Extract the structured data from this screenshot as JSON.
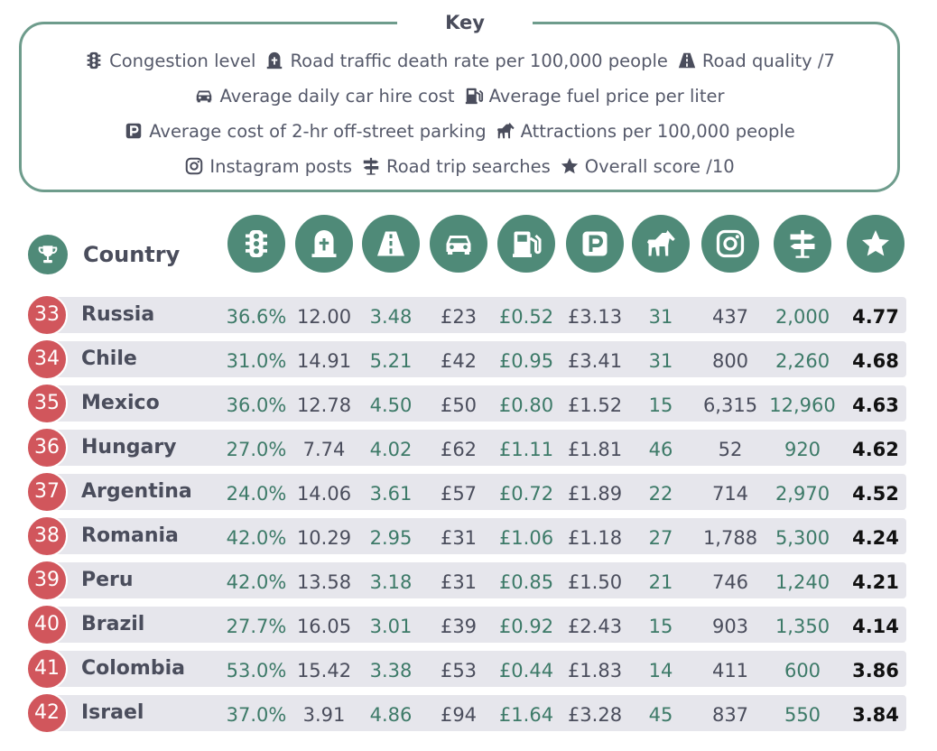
{
  "key": {
    "title": "Key",
    "rows": [
      [
        {
          "icon": "traffic-light-icon",
          "label": "Congestion level"
        },
        {
          "icon": "gravestone-icon",
          "label": "Road traffic death rate per 100,000 people"
        },
        {
          "icon": "road-icon",
          "label": "Road quality /7"
        }
      ],
      [
        {
          "icon": "car-icon",
          "label": "Average daily car hire cost"
        },
        {
          "icon": "fuel-pump-icon",
          "label": "Average fuel price per liter"
        }
      ],
      [
        {
          "icon": "parking-icon",
          "label": "Average cost of 2-hr off-street parking"
        },
        {
          "icon": "horse-icon",
          "label": "Attractions per 100,000 people"
        }
      ],
      [
        {
          "icon": "instagram-icon",
          "label": "Instagram posts"
        },
        {
          "icon": "signpost-icon",
          "label": "Road trip searches"
        },
        {
          "icon": "star-icon",
          "label": "Overall score /10"
        }
      ]
    ]
  },
  "table": {
    "country_header": "Country",
    "rank_icon": "trophy-icon",
    "column_icons": [
      "traffic-light-icon",
      "gravestone-icon",
      "road-icon",
      "car-icon",
      "fuel-pump-icon",
      "parking-icon",
      "horse-icon",
      "instagram-icon",
      "signpost-icon",
      "star-icon"
    ],
    "colors": {
      "accent": "#4f8a78",
      "rank_badge": "#d1565c",
      "row_bg": "#e6e6ec",
      "value_green": "#3d7a68"
    }
  },
  "chart_data": {
    "type": "table",
    "columns": [
      "Rank",
      "Country",
      "Congestion level",
      "Road traffic death rate per 100,000 people",
      "Road quality /7",
      "Average daily car hire cost",
      "Average fuel price per liter",
      "Average cost of 2-hr off-street parking",
      "Attractions per 100,000 people",
      "Instagram posts",
      "Road trip searches",
      "Overall score /10"
    ],
    "rows": [
      {
        "rank": "33",
        "country": "Russia",
        "values": [
          "36.6%",
          "12.00",
          "3.48",
          "£23",
          "£0.52",
          "£3.13",
          "31",
          "437",
          "2,000",
          "4.77"
        ]
      },
      {
        "rank": "34",
        "country": "Chile",
        "values": [
          "31.0%",
          "14.91",
          "5.21",
          "£42",
          "£0.95",
          "£3.41",
          "31",
          "800",
          "2,260",
          "4.68"
        ]
      },
      {
        "rank": "35",
        "country": "Mexico",
        "values": [
          "36.0%",
          "12.78",
          "4.50",
          "£50",
          "£0.80",
          "£1.52",
          "15",
          "6,315",
          "12,960",
          "4.63"
        ]
      },
      {
        "rank": "36",
        "country": "Hungary",
        "values": [
          "27.0%",
          "7.74",
          "4.02",
          "£62",
          "£1.11",
          "£1.81",
          "46",
          "52",
          "920",
          "4.62"
        ]
      },
      {
        "rank": "37",
        "country": "Argentina",
        "values": [
          "24.0%",
          "14.06",
          "3.61",
          "£57",
          "£0.72",
          "£1.89",
          "22",
          "714",
          "2,970",
          "4.52"
        ]
      },
      {
        "rank": "38",
        "country": "Romania",
        "values": [
          "42.0%",
          "10.29",
          "2.95",
          "£31",
          "£1.06",
          "£1.18",
          "27",
          "1,788",
          "5,300",
          "4.24"
        ]
      },
      {
        "rank": "39",
        "country": "Peru",
        "values": [
          "42.0%",
          "13.58",
          "3.18",
          "£31",
          "£0.85",
          "£1.50",
          "21",
          "746",
          "1,240",
          "4.21"
        ]
      },
      {
        "rank": "40",
        "country": "Brazil",
        "values": [
          "27.7%",
          "16.05",
          "3.01",
          "£39",
          "£0.92",
          "£2.43",
          "15",
          "903",
          "1,350",
          "4.14"
        ]
      },
      {
        "rank": "41",
        "country": "Colombia",
        "values": [
          "53.0%",
          "15.42",
          "3.38",
          "£53",
          "£0.44",
          "£1.83",
          "14",
          "411",
          "600",
          "3.86"
        ]
      },
      {
        "rank": "42",
        "country": "Israel",
        "values": [
          "37.0%",
          "3.91",
          "4.86",
          "£94",
          "£1.64",
          "£3.28",
          "45",
          "837",
          "550",
          "3.84"
        ]
      }
    ]
  }
}
